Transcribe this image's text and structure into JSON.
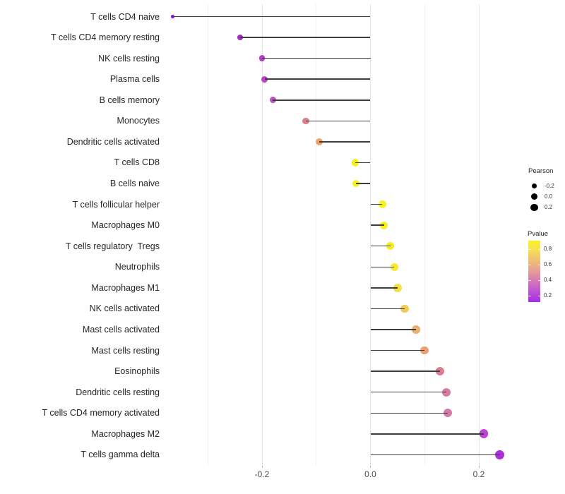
{
  "chart_data": {
    "type": "lollipop",
    "orientation": "horizontal",
    "title": "",
    "xlabel": "",
    "ylabel": "",
    "x_axis": {
      "tick_labels": [
        "-0.2",
        "0.0",
        "0.2"
      ],
      "tick_values": [
        -0.2,
        0.0,
        0.2
      ],
      "minor_gridlines": [
        -0.3,
        -0.1,
        0.1
      ],
      "range": [
        -0.38,
        0.28
      ]
    },
    "points": [
      {
        "label": "T cells CD4 naive",
        "pearson": -0.365,
        "color": "#9019de",
        "size": 4.5
      },
      {
        "label": "T cells CD4 memory resting",
        "pearson": -0.24,
        "color": "#a62bc9",
        "size": 8.0
      },
      {
        "label": "NK cells resting",
        "pearson": -0.2,
        "color": "#b43cc7",
        "size": 8.6
      },
      {
        "label": "Plasma cells",
        "pearson": -0.195,
        "color": "#b844c6",
        "size": 8.7
      },
      {
        "label": "B cells memory",
        "pearson": -0.18,
        "color": "#bd50c5",
        "size": 8.9
      },
      {
        "label": "Monocytes",
        "pearson": -0.119,
        "color": "#db7f8d",
        "size": 9.6
      },
      {
        "label": "Dendritic cells activated",
        "pearson": -0.094,
        "color": "#efa568",
        "size": 9.9
      },
      {
        "label": "T cells CD8",
        "pearson": -0.028,
        "color": "#f6f11e",
        "size": 10.5
      },
      {
        "label": "B cells naive",
        "pearson": -0.027,
        "color": "#f7f21d",
        "size": 10.5
      },
      {
        "label": "T cells follicular helper",
        "pearson": 0.022,
        "color": "#f8f220",
        "size": 11.0
      },
      {
        "label": "Macrophages M0",
        "pearson": 0.025,
        "color": "#f7f01f",
        "size": 11.0
      },
      {
        "label": "T cells regulatory  Tregs",
        "pearson": 0.037,
        "color": "#f6ec25",
        "size": 11.2
      },
      {
        "label": "Neutrophils",
        "pearson": 0.044,
        "color": "#f7ea2e",
        "size": 11.3
      },
      {
        "label": "Macrophages M1",
        "pearson": 0.05,
        "color": "#f3df4b",
        "size": 11.4
      },
      {
        "label": "NK cells activated",
        "pearson": 0.063,
        "color": "#efcb58",
        "size": 11.5
      },
      {
        "label": "Mast cells activated",
        "pearson": 0.084,
        "color": "#edae71",
        "size": 11.7
      },
      {
        "label": "Mast cells resting",
        "pearson": 0.1,
        "color": "#eaa077",
        "size": 11.8
      },
      {
        "label": "Eosinophils",
        "pearson": 0.128,
        "color": "#db7e91",
        "size": 12.1
      },
      {
        "label": "Dendritic cells resting",
        "pearson": 0.14,
        "color": "#d77ba1",
        "size": 12.2
      },
      {
        "label": "T cells CD4 memory activated",
        "pearson": 0.143,
        "color": "#d57aa6",
        "size": 12.2
      },
      {
        "label": "Macrophages M2",
        "pearson": 0.209,
        "color": "#bc43d6",
        "size": 12.8
      },
      {
        "label": "T cells gamma delta",
        "pearson": 0.239,
        "color": "#af2cda",
        "size": 13.0
      }
    ],
    "legend_size": {
      "title": "Pearson",
      "dot_color": "#000000",
      "entries": [
        {
          "label": "-0.2",
          "diameter": 7.5
        },
        {
          "label": "0.0",
          "diameter": 9.0
        },
        {
          "label": "0.2",
          "diameter": 10.5
        }
      ]
    },
    "legend_color": {
      "title": "Pvalue",
      "tick_labels": [
        "0.8",
        "0.6",
        "0.4",
        "0.2"
      ],
      "gradient_top_to_bottom": [
        "#f9f320",
        "#f6df56",
        "#f0bd76",
        "#e79f95",
        "#d87fb2",
        "#c25bd2",
        "#a82be4"
      ]
    }
  },
  "colors": {
    "background": "#ffffff",
    "stem": "#3d3d3d",
    "gridline_major": "#e3e3e3",
    "gridline_minor": "#f2f2f2",
    "axis_text": "#4d4d4d",
    "label_text": "#262626"
  }
}
